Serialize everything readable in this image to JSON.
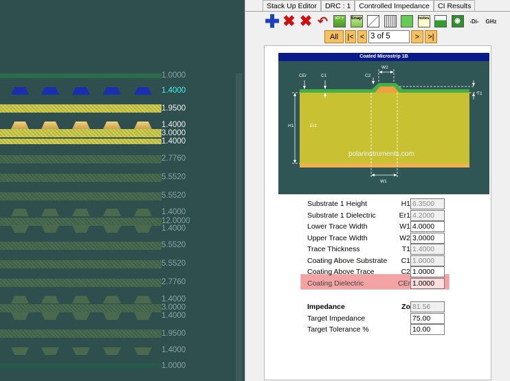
{
  "stackup": {
    "thicknesses": [
      {
        "label": "1.0000"
      },
      {
        "label": "1.4000"
      },
      {
        "label": "1.9500"
      },
      {
        "label": "1.4000"
      },
      {
        "label": "3.0000"
      },
      {
        "label": "1.4000"
      },
      {
        "label": "2.7760"
      },
      {
        "label": "5.5520"
      },
      {
        "label": "5.5520"
      },
      {
        "label": "1.4000"
      },
      {
        "label": "12.0000"
      },
      {
        "label": "1.4000"
      },
      {
        "label": "5.5520"
      },
      {
        "label": "5.5520"
      },
      {
        "label": "2.7760"
      },
      {
        "label": "1.4000"
      },
      {
        "label": "3.0000"
      },
      {
        "label": "1.4000"
      },
      {
        "label": "1.9500"
      },
      {
        "label": "1.4000"
      },
      {
        "label": "1.0000"
      }
    ]
  },
  "tabs": [
    {
      "label": "Stack Up Editor"
    },
    {
      "label": "DRC : 1"
    },
    {
      "label": "Controlled Impedance"
    },
    {
      "label": "CI Results"
    }
  ],
  "toolbar": {
    "snap_label": "Snap",
    "notes_label": "notes",
    "ghz_label": "GHz",
    "di_label": "-Di-"
  },
  "nav": {
    "all_label": "All",
    "first_label": "|<",
    "prev_label": "<",
    "page_info": "3 of 5",
    "next_label": ">",
    "last_label": ">|"
  },
  "diagram": {
    "title": "Coated Microstrip 1B",
    "watermark": "polarinstruments.com",
    "labels": {
      "cer": "CEr",
      "c1": "C1",
      "c2": "C2",
      "w2": "W2",
      "t1": "T1",
      "h1": "H1",
      "er1": "Er1",
      "w1": "W1"
    }
  },
  "params": [
    {
      "name": "Substrate 1 Height",
      "symbol": "H1",
      "value": "6.3500",
      "readonly": true
    },
    {
      "name": "Substrate 1 Dielectric",
      "symbol": "Er1",
      "value": "4.2000",
      "readonly": true
    },
    {
      "name": "Lower Trace Width",
      "symbol": "W1",
      "value": "4.0000",
      "readonly": false
    },
    {
      "name": "Upper Trace Width",
      "symbol": "W2",
      "value": "3.0000",
      "readonly": false
    },
    {
      "name": "Trace Thickness",
      "symbol": "T1",
      "value": "1.4000",
      "readonly": true
    },
    {
      "name": "Coating Above Substrate",
      "symbol": "C1",
      "value": "1.0000",
      "readonly": true
    },
    {
      "name": "Coating Above Trace",
      "symbol": "C2",
      "value": "1.0000",
      "readonly": false
    },
    {
      "name": "Coating Dielectric",
      "symbol": "CEr",
      "value": "1.0000",
      "readonly": false
    }
  ],
  "results": [
    {
      "name": "Impedance",
      "symbol": "Zo",
      "value": "81.56",
      "readonly": true
    },
    {
      "name": "Target Impedance",
      "symbol": "",
      "value": "75.00",
      "readonly": false
    },
    {
      "name": "Target Tolerance %",
      "symbol": "",
      "value": "10.00",
      "readonly": false
    }
  ],
  "colors": {
    "highlight": "#f3a3a3",
    "diagram_bg": "#2f5555",
    "title_bar": "#0b1a8a",
    "nav_button": "#f5c060"
  }
}
